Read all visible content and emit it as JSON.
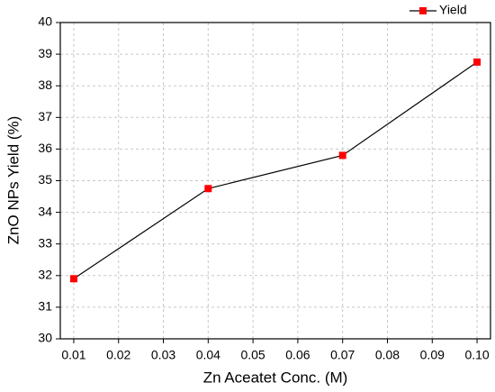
{
  "chart_data": {
    "type": "line",
    "x_label": "Zn Aceatet Conc. (M)",
    "y_label": "ZnO NPs Yield (%)",
    "x": [
      0.01,
      0.04,
      0.07,
      0.1
    ],
    "series": [
      {
        "name": "Yield",
        "color": "#ff0000",
        "values": [
          31.9,
          34.75,
          35.8,
          38.75
        ]
      }
    ],
    "xlim": [
      0.007,
      0.103
    ],
    "xticks": [
      0.01,
      0.02,
      0.03,
      0.04,
      0.05,
      0.06,
      0.07,
      0.08,
      0.09,
      {
        "value": 0.1,
        "label": "0.10"
      }
    ],
    "ylim": [
      30,
      40
    ],
    "yticks": [
      30,
      31,
      32,
      33,
      34,
      35,
      36,
      37,
      38,
      39,
      40
    ],
    "grid": true,
    "legend": "upper right"
  }
}
